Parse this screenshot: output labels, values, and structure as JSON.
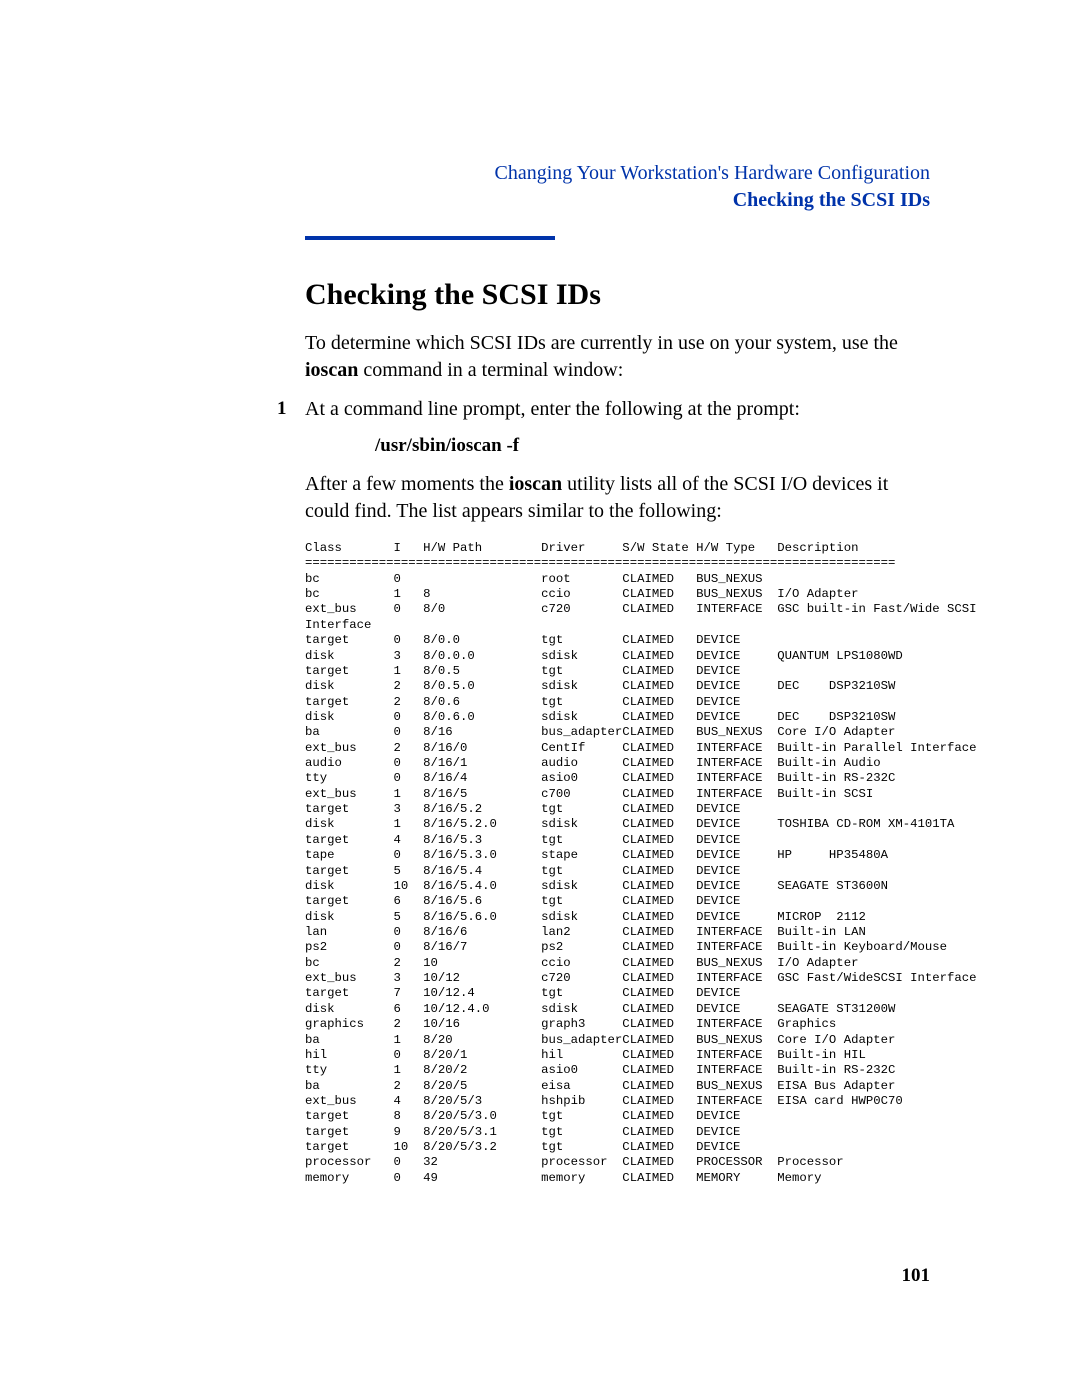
{
  "header": {
    "chapter": "Changing Your Workstation's Hardware Configuration",
    "section": "Checking the SCSI IDs"
  },
  "title": "Checking the SCSI IDs",
  "intro_parts": {
    "a": "To determine which SCSI IDs are currently in use on your system, use the ",
    "b": "ioscan",
    "c": " command in a terminal window:"
  },
  "step1": {
    "num": "1",
    "text": "At a command line prompt, enter the following at the prompt:",
    "cmd": "/usr/sbin/ioscan -f",
    "after_a": "After a few moments the ",
    "after_b": "ioscan",
    "after_c": " utility lists all of the SCSI I/O devices it could find. The list appears similar to the following:"
  },
  "table": {
    "cols": [
      "Class",
      "I",
      "H/W Path",
      "Driver",
      "S/W State",
      "H/W Type",
      "Description"
    ],
    "widths": [
      12,
      4,
      16,
      11,
      10,
      11,
      0
    ],
    "rows": [
      [
        "bc",
        "0",
        "",
        "root",
        "CLAIMED",
        "BUS_NEXUS",
        ""
      ],
      [
        "bc",
        "1",
        "8",
        "ccio",
        "CLAIMED",
        "BUS_NEXUS",
        "I/O Adapter"
      ],
      [
        "ext_bus",
        "0",
        "8/0",
        "c720",
        "CLAIMED",
        "INTERFACE",
        "GSC built-in Fast/Wide SCSI"
      ],
      [
        "Interface",
        "",
        "",
        "",
        "",
        "",
        ""
      ],
      [
        "target",
        "0",
        "8/0.0",
        "tgt",
        "CLAIMED",
        "DEVICE",
        ""
      ],
      [
        "disk",
        "3",
        "8/0.0.0",
        "sdisk",
        "CLAIMED",
        "DEVICE",
        "QUANTUM LPS1080WD"
      ],
      [
        "target",
        "1",
        "8/0.5",
        "tgt",
        "CLAIMED",
        "DEVICE",
        ""
      ],
      [
        "disk",
        "2",
        "8/0.5.0",
        "sdisk",
        "CLAIMED",
        "DEVICE",
        "DEC    DSP3210SW"
      ],
      [
        "target",
        "2",
        "8/0.6",
        "tgt",
        "CLAIMED",
        "DEVICE",
        ""
      ],
      [
        "disk",
        "0",
        "8/0.6.0",
        "sdisk",
        "CLAIMED",
        "DEVICE",
        "DEC    DSP3210SW"
      ],
      [
        "ba",
        "0",
        "8/16",
        "bus_adapter",
        "CLAIMED",
        "BUS_NEXUS",
        "Core I/O Adapter"
      ],
      [
        "ext_bus",
        "2",
        "8/16/0",
        "CentIf",
        "CLAIMED",
        "INTERFACE",
        "Built-in Parallel Interface"
      ],
      [
        "audio",
        "0",
        "8/16/1",
        "audio",
        "CLAIMED",
        "INTERFACE",
        "Built-in Audio"
      ],
      [
        "tty",
        "0",
        "8/16/4",
        "asio0",
        "CLAIMED",
        "INTERFACE",
        "Built-in RS-232C"
      ],
      [
        "ext_bus",
        "1",
        "8/16/5",
        "c700",
        "CLAIMED",
        "INTERFACE",
        "Built-in SCSI"
      ],
      [
        "target",
        "3",
        "8/16/5.2",
        "tgt",
        "CLAIMED",
        "DEVICE",
        ""
      ],
      [
        "disk",
        "1",
        "8/16/5.2.0",
        "sdisk",
        "CLAIMED",
        "DEVICE",
        "TOSHIBA CD-ROM XM-4101TA"
      ],
      [
        "target",
        "4",
        "8/16/5.3",
        "tgt",
        "CLAIMED",
        "DEVICE",
        ""
      ],
      [
        "tape",
        "0",
        "8/16/5.3.0",
        "stape",
        "CLAIMED",
        "DEVICE",
        "HP     HP35480A"
      ],
      [
        "target",
        "5",
        "8/16/5.4",
        "tgt",
        "CLAIMED",
        "DEVICE",
        ""
      ],
      [
        "disk",
        "10",
        "8/16/5.4.0",
        "sdisk",
        "CLAIMED",
        "DEVICE",
        "SEAGATE ST3600N"
      ],
      [
        "target",
        "6",
        "8/16/5.6",
        "tgt",
        "CLAIMED",
        "DEVICE",
        ""
      ],
      [
        "disk",
        "5",
        "8/16/5.6.0",
        "sdisk",
        "CLAIMED",
        "DEVICE",
        "MICROP  2112"
      ],
      [
        "lan",
        "0",
        "8/16/6",
        "lan2",
        "CLAIMED",
        "INTERFACE",
        "Built-in LAN"
      ],
      [
        "ps2",
        "0",
        "8/16/7",
        "ps2",
        "CLAIMED",
        "INTERFACE",
        "Built-in Keyboard/Mouse"
      ],
      [
        "bc",
        "2",
        "10",
        "ccio",
        "CLAIMED",
        "BUS_NEXUS",
        "I/O Adapter"
      ],
      [
        "ext_bus",
        "3",
        "10/12",
        "c720",
        "CLAIMED",
        "INTERFACE",
        "GSC Fast/WideSCSI Interface"
      ],
      [
        "target",
        "7",
        "10/12.4",
        "tgt",
        "CLAIMED",
        "DEVICE",
        ""
      ],
      [
        "disk",
        "6",
        "10/12.4.0",
        "sdisk",
        "CLAIMED",
        "DEVICE",
        "SEAGATE ST31200W"
      ],
      [
        "graphics",
        "2",
        "10/16",
        "graph3",
        "CLAIMED",
        "INTERFACE",
        "Graphics"
      ],
      [
        "ba",
        "1",
        "8/20",
        "bus_adapter",
        "CLAIMED",
        "BUS_NEXUS",
        "Core I/O Adapter"
      ],
      [
        "hil",
        "0",
        "8/20/1",
        "hil",
        "CLAIMED",
        "INTERFACE",
        "Built-in HIL"
      ],
      [
        "tty",
        "1",
        "8/20/2",
        "asio0",
        "CLAIMED",
        "INTERFACE",
        "Built-in RS-232C"
      ],
      [
        "ba",
        "2",
        "8/20/5",
        "eisa",
        "CLAIMED",
        "BUS_NEXUS",
        "EISA Bus Adapter"
      ],
      [
        "ext_bus",
        "4",
        "8/20/5/3",
        "hshpib",
        "CLAIMED",
        "INTERFACE",
        "EISA card HWP0C70"
      ],
      [
        "target",
        "8",
        "8/20/5/3.0",
        "tgt",
        "CLAIMED",
        "DEVICE",
        ""
      ],
      [
        "target",
        "9",
        "8/20/5/3.1",
        "tgt",
        "CLAIMED",
        "DEVICE",
        ""
      ],
      [
        "target",
        "10",
        "8/20/5/3.2",
        "tgt",
        "CLAIMED",
        "DEVICE",
        ""
      ],
      [
        "processor",
        "0",
        "32",
        "processor",
        "CLAIMED",
        "PROCESSOR",
        "Processor"
      ],
      [
        "memory",
        "0",
        "49",
        "memory",
        "CLAIMED",
        "MEMORY",
        "Memory"
      ]
    ]
  },
  "page_number": "101"
}
